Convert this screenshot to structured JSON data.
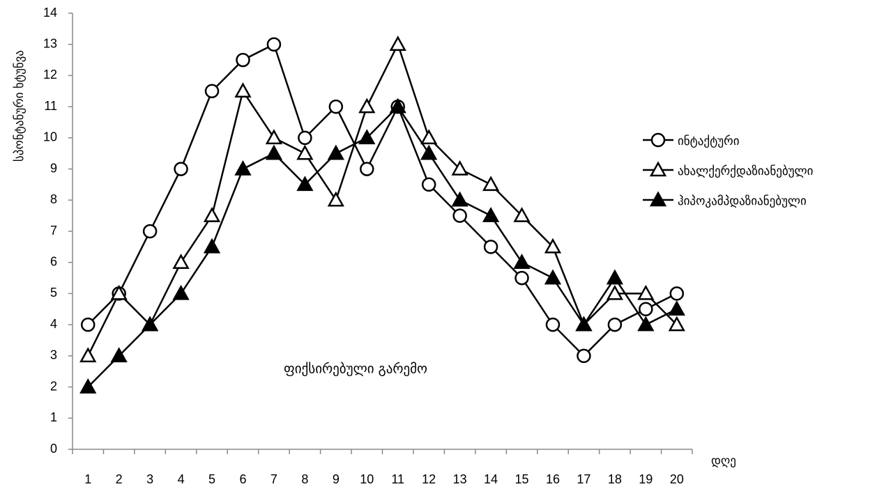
{
  "chart_data": {
    "type": "line",
    "y_label": "სპონტანური ხტუნვა",
    "x_label": "დღე",
    "annotation": "ფიქსირებული გარემო",
    "categories": [
      1,
      2,
      3,
      4,
      5,
      6,
      7,
      8,
      9,
      10,
      11,
      12,
      13,
      14,
      15,
      16,
      17,
      18,
      19,
      20
    ],
    "series": [
      {
        "name": "ინტაქტური",
        "color": "#000000",
        "marker": "circle",
        "values": [
          4,
          5,
          7,
          9,
          11.5,
          12.5,
          13,
          10,
          11,
          9,
          11,
          8.5,
          7.5,
          6.5,
          5.5,
          4,
          3,
          4,
          4.5,
          5
        ]
      },
      {
        "name": "ახალქერქდაზიანებული",
        "color": "#000000",
        "marker": "triangle-open",
        "values": [
          3,
          5,
          4,
          6,
          7.5,
          11.5,
          10,
          9.5,
          8,
          11,
          13,
          10,
          9,
          8.5,
          7.5,
          6.5,
          4,
          5,
          5,
          4
        ]
      },
      {
        "name": "ჰიპოკამპდაზიანებული",
        "color": "#000000",
        "marker": "triangle-filled",
        "values": [
          2,
          3,
          4,
          5,
          6.5,
          9,
          9.5,
          8.5,
          9.5,
          10,
          11,
          9.5,
          8,
          7.5,
          6,
          5.5,
          4,
          5.5,
          4,
          4.5
        ]
      }
    ],
    "ylim": [
      0,
      14
    ],
    "yticks": [
      0,
      1,
      2,
      3,
      4,
      5,
      6,
      7,
      8,
      9,
      10,
      11,
      12,
      13,
      14
    ],
    "grid": false,
    "legend": "right"
  }
}
